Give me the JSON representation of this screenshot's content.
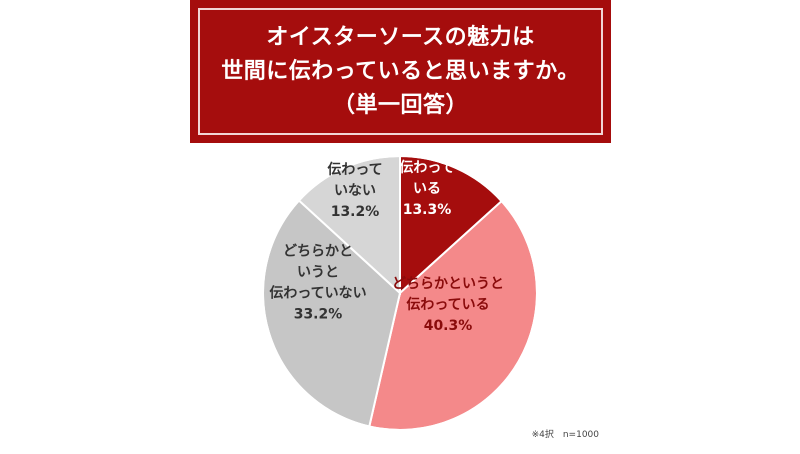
{
  "header": {
    "title_lines": [
      "オイスターソースの魅力は",
      "世間に伝わっていると思いますか。",
      "（単一回答）"
    ]
  },
  "chart_data": {
    "type": "pie",
    "start": "top, clockwise",
    "slices": [
      {
        "label_lines": [
          "伝わって",
          "いる"
        ],
        "value": 13.3,
        "value_label": "13.3%",
        "color": "#a50d0d",
        "text_color": "#ffffff"
      },
      {
        "label_lines": [
          "どちらかというと",
          "伝わっている"
        ],
        "value": 40.3,
        "value_label": "40.3%",
        "color": "#f4898a",
        "text_color": "#8a0b0b"
      },
      {
        "label_lines": [
          "どちらかと",
          "いうと",
          "伝わっていない"
        ],
        "value": 33.2,
        "value_label": "33.2%",
        "color": "#c6c6c6",
        "text_color": "#333333"
      },
      {
        "label_lines": [
          "伝わって",
          "いない"
        ],
        "value": 13.2,
        "value_label": "13.2%",
        "color": "#d6d6d6",
        "text_color": "#333333"
      }
    ]
  },
  "footnote": "※4択　n=1000"
}
